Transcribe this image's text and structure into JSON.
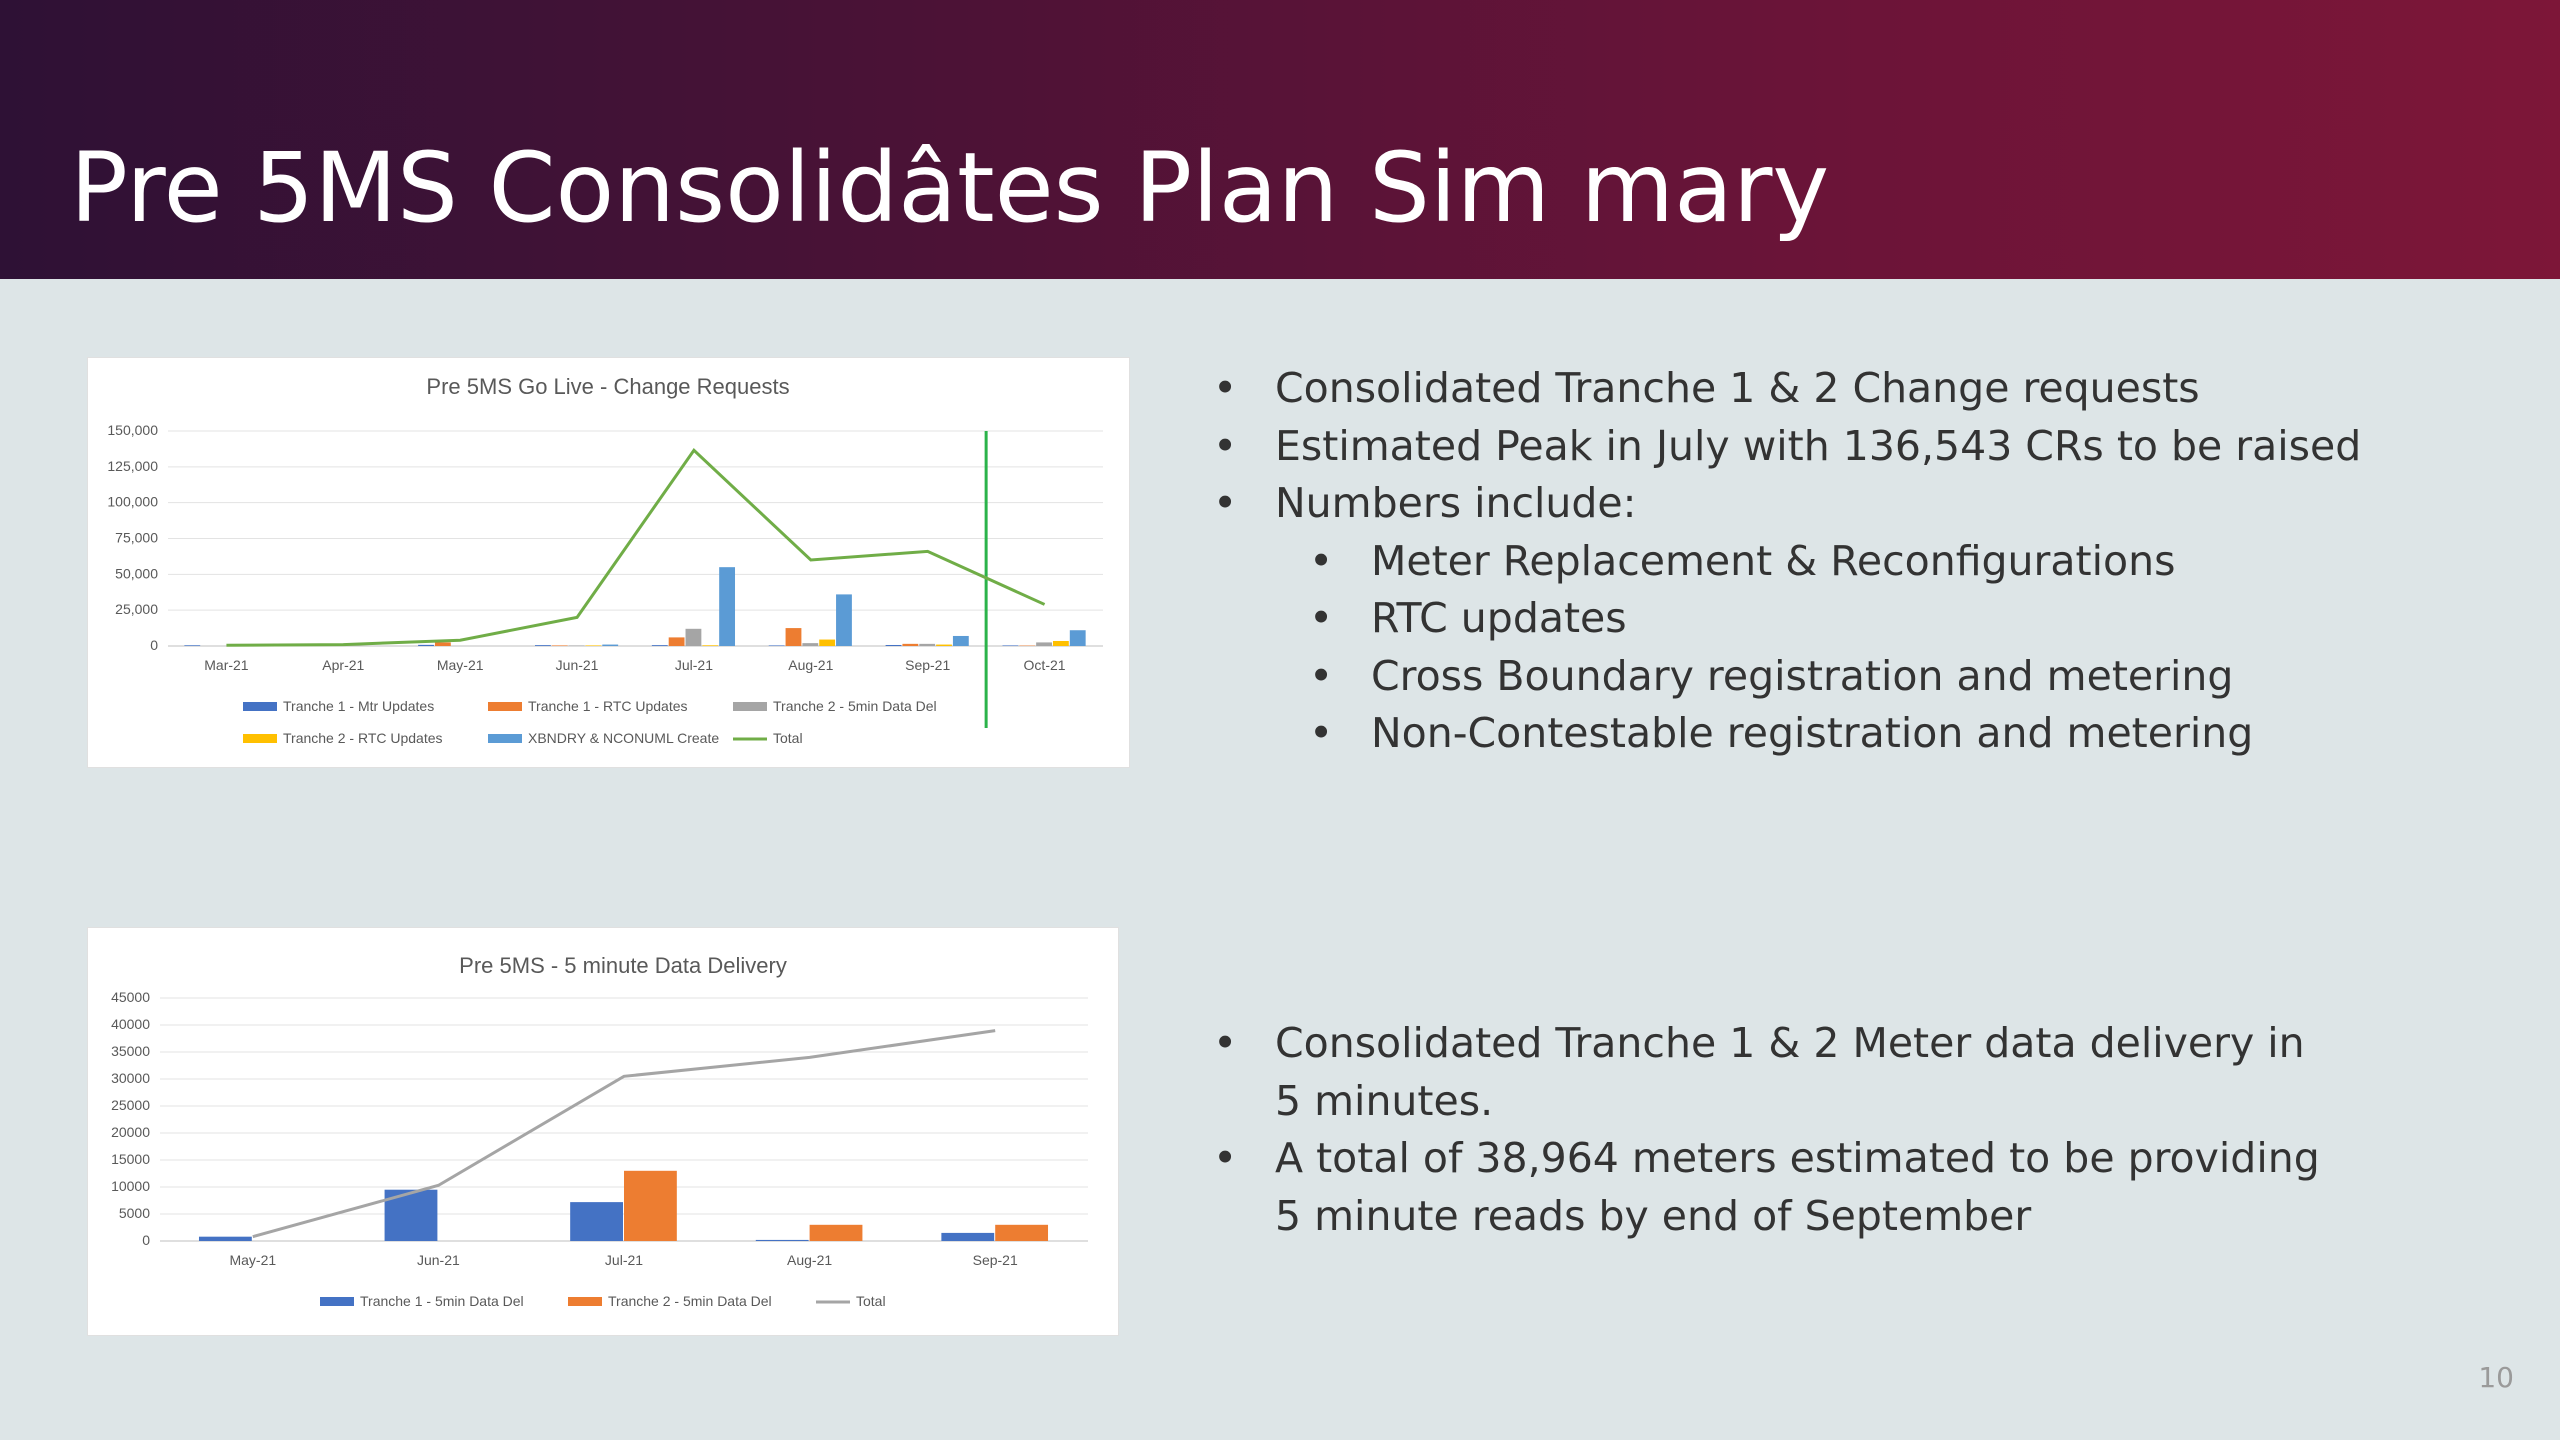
{
  "slide": {
    "title": "Pre 5MS Consolidâtes Plan Sim mary",
    "page_number": "10",
    "colors": {
      "header_start": "#2e1135",
      "header_end": "#7d1638",
      "background": "#dde5e7"
    }
  },
  "bullets_top": [
    {
      "text": "Consolidated Tranche 1 & 2 Change requests",
      "level": 1
    },
    {
      "text": "Estimated Peak in July with 136,543 CRs to be raised",
      "level": 1
    },
    {
      "text": "Numbers include:",
      "level": 1
    },
    {
      "text": "Meter Replacement & Reconfigurations",
      "level": 2
    },
    {
      "text": "RTC updates",
      "level": 2
    },
    {
      "text": "Cross Boundary registration and metering",
      "level": 2
    },
    {
      "text": "Non-Contestable registration and metering",
      "level": 2
    }
  ],
  "bullets_bottom": [
    {
      "text": "Consolidated Tranche 1 & 2 Meter data delivery in",
      "level": 1
    },
    {
      "text": "5 minutes.",
      "level": 0
    },
    {
      "text": "A total of 38,964 meters estimated to be providing",
      "level": 1
    },
    {
      "text": "5 minute reads by end of September",
      "level": 0
    }
  ],
  "chart_data": [
    {
      "type": "bar",
      "title": "Pre 5MS Go Live - Change Requests",
      "categories": [
        "Mar-21",
        "Apr-21",
        "May-21",
        "Jun-21",
        "Jul-21",
        "Aug-21",
        "Sep-21",
        "Oct-21"
      ],
      "ylim": [
        0,
        150000
      ],
      "yticks": [
        "0",
        "25,000",
        "50,000",
        "75,000",
        "100,000",
        "125,000",
        "150,000"
      ],
      "ytick_values": [
        0,
        25000,
        50000,
        75000,
        100000,
        125000,
        150000
      ],
      "grid": true,
      "legend": "bottom",
      "marker_line": {
        "between": [
          "Sep-21",
          "Oct-21"
        ],
        "color": "#2bb34a"
      },
      "series": [
        {
          "name": "Tranche 1 - Mtr Updates",
          "color": "#4472c4",
          "kind": "bar",
          "values": [
            500,
            300,
            800,
            600,
            600,
            400,
            700,
            400
          ]
        },
        {
          "name": "Tranche 1 - RTC Updates",
          "color": "#ed7d31",
          "kind": "bar",
          "values": [
            0,
            0,
            2500,
            400,
            6000,
            12500,
            1500,
            300
          ]
        },
        {
          "name": "Tranche 2 - 5min Data Del",
          "color": "#a5a5a5",
          "kind": "bar",
          "values": [
            0,
            0,
            0,
            400,
            12000,
            2000,
            1500,
            2500
          ]
        },
        {
          "name": "Tranche 2 - RTC Updates",
          "color": "#ffc000",
          "kind": "bar",
          "values": [
            0,
            0,
            0,
            400,
            500,
            4500,
            1000,
            3500
          ]
        },
        {
          "name": "XBNDRY & NCONUML Create",
          "color": "#5b9bd5",
          "kind": "bar",
          "values": [
            0,
            0,
            0,
            1000,
            55000,
            36000,
            7000,
            11000
          ]
        },
        {
          "name": "Total",
          "color": "#70ad47",
          "kind": "line",
          "values": [
            500,
            1000,
            4000,
            20000,
            136543,
            60000,
            66000,
            29000
          ]
        }
      ]
    },
    {
      "type": "bar",
      "title": "Pre 5MS - 5 minute Data Delivery",
      "categories": [
        "May-21",
        "Jun-21",
        "Jul-21",
        "Aug-21",
        "Sep-21"
      ],
      "ylim": [
        0,
        45000
      ],
      "yticks": [
        "0",
        "5000",
        "10000",
        "15000",
        "20000",
        "25000",
        "30000",
        "35000",
        "40000",
        "45000"
      ],
      "ytick_values": [
        0,
        5000,
        10000,
        15000,
        20000,
        25000,
        30000,
        35000,
        40000,
        45000
      ],
      "grid": true,
      "legend": "bottom",
      "series": [
        {
          "name": "Tranche 1 - 5min Data Del",
          "color": "#4472c4",
          "kind": "bar",
          "values": [
            800,
            9500,
            7200,
            200,
            1500
          ]
        },
        {
          "name": "Tranche 2 - 5min Data Del",
          "color": "#ed7d31",
          "kind": "bar",
          "values": [
            0,
            0,
            13000,
            3000,
            3000
          ]
        },
        {
          "name": "Total",
          "color": "#a5a5a5",
          "kind": "line",
          "values": [
            800,
            10300,
            30500,
            34000,
            38964
          ]
        }
      ]
    }
  ]
}
